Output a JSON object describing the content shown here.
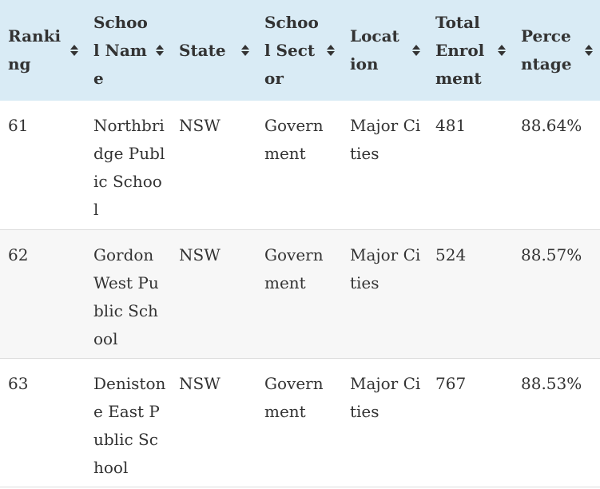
{
  "table": {
    "columns": [
      {
        "label": "Ranking"
      },
      {
        "label": "School Name"
      },
      {
        "label": "State"
      },
      {
        "label": "School Sector"
      },
      {
        "label": "Location"
      },
      {
        "label": "Total Enrolment"
      },
      {
        "label": "Percentage"
      }
    ],
    "rows": [
      {
        "ranking": "61",
        "school_name": "Northbridge Public School",
        "state": "NSW",
        "sector": "Government",
        "location": "Major Cities",
        "enrolment": "481",
        "percentage": "88.64%"
      },
      {
        "ranking": "62",
        "school_name": "Gordon West Public School",
        "state": "NSW",
        "sector": "Government",
        "location": "Major Cities",
        "enrolment": "524",
        "percentage": "88.57%"
      },
      {
        "ranking": "63",
        "school_name": "Denistone East Public School",
        "state": "NSW",
        "sector": "Government",
        "location": "Major Cities",
        "enrolment": "767",
        "percentage": "88.53%"
      }
    ]
  },
  "colors": {
    "header_bg": "#d9ebf5",
    "row_alt_bg": "#f7f7f7",
    "row_border": "#dcdcdc",
    "text": "#333333"
  },
  "icons": {
    "sort": "sort-up-down-icon"
  }
}
